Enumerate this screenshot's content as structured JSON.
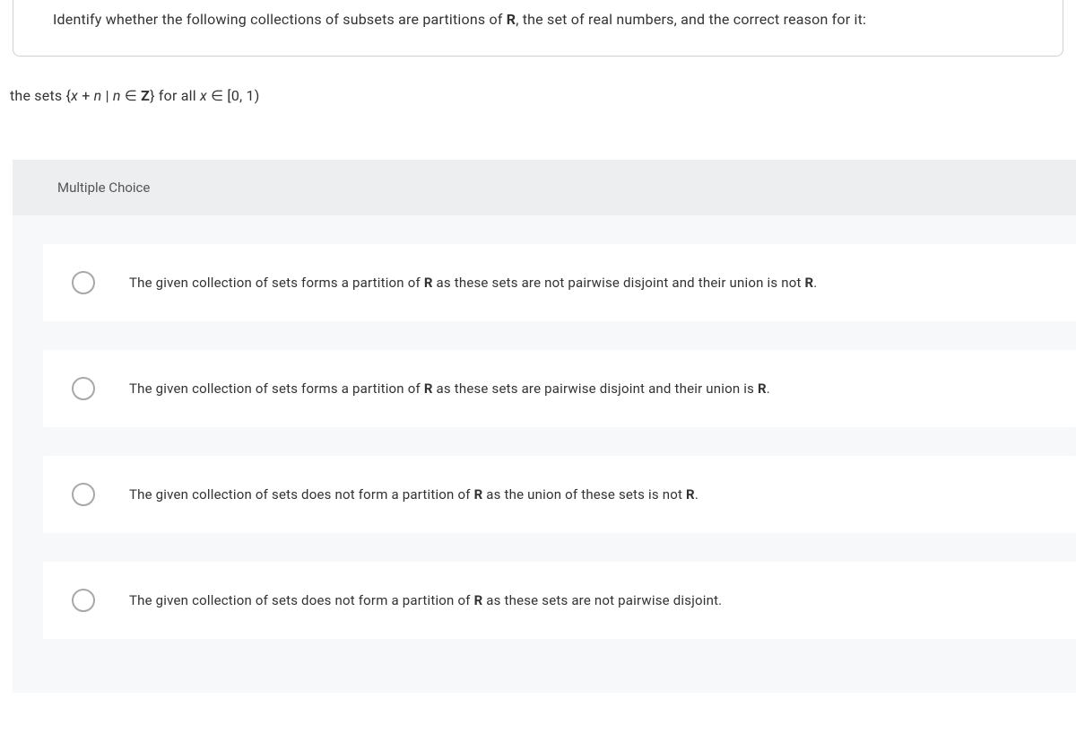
{
  "question": {
    "prompt_pre": "Identify whether the following collections of subsets are partitions of ",
    "prompt_bold": "R",
    "prompt_post": ", the set of real numbers, and the correct reason for it:"
  },
  "subquestion": {
    "pre": "the sets {",
    "x": "x",
    "plus": " + ",
    "n": "n",
    "bar": " | ",
    "n2": "n",
    "in": " ∈ ",
    "Z": "Z",
    "brace_for": "} for all ",
    "x2": "x",
    "in2": " ∈ [0, 1)"
  },
  "mc_header": "Multiple Choice",
  "options": [
    {
      "pre": "The given collection of sets forms a partition of ",
      "b1": "R",
      "mid": " as these sets are not pairwise disjoint and their union is not ",
      "b2": "R",
      "post": "."
    },
    {
      "pre": "The given collection of sets forms a partition of ",
      "b1": "R",
      "mid": " as these sets are pairwise disjoint and their union is ",
      "b2": "R",
      "post": "."
    },
    {
      "pre": "The given collection of sets does not form a partition of ",
      "b1": "R",
      "mid": " as the union of these sets is not ",
      "b2": "R",
      "post": "."
    },
    {
      "pre": "The given collection of sets does not form a partition of ",
      "b1": "R",
      "mid": " as these sets are not pairwise disjoint.",
      "b2": "",
      "post": ""
    }
  ],
  "colors": {
    "border": "#d0d0d0",
    "text": "#333333",
    "mc_bg": "#f7f8f9",
    "mc_header_bg": "#eceeef",
    "option_bg": "#ffffff",
    "radio_border": "#a8a8a8"
  }
}
